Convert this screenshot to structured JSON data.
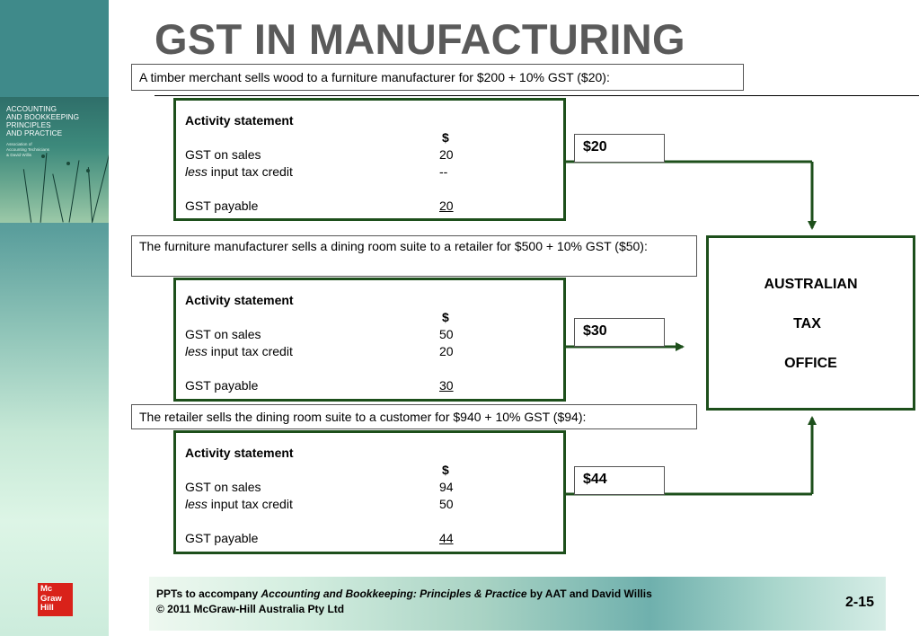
{
  "slide": {
    "title": "GST IN MANUFACTURING",
    "page_number": "2-15"
  },
  "sidebar": {
    "cover_title_lines": [
      "ACCOUNTING",
      "AND BOOKKEEPING",
      "PRINCIPLES",
      "AND PRACTICE"
    ],
    "cover_sub_lines": [
      "Association of",
      "Accounting Technicians",
      "& David Willis"
    ],
    "logo_lines": [
      "Mc",
      "Graw",
      "Hill"
    ]
  },
  "steps": [
    {
      "description": "A timber merchant sells wood to a furniture manufacturer for $200 + 10% GST ($20):",
      "statement": {
        "heading": "Activity statement",
        "currency": "$",
        "sales_label": "GST on sales",
        "sales_value": "20",
        "credit_label_em": "less",
        "credit_label_rest": " input tax credit",
        "credit_value": "--",
        "payable_label": "GST payable",
        "payable_value": "20"
      },
      "amount": "$20"
    },
    {
      "description": "The furniture manufacturer sells a dining room suite to a retailer for $500 + 10% GST ($50):",
      "statement": {
        "heading": "Activity statement",
        "currency": "$",
        "sales_label": "GST on sales",
        "sales_value": "50",
        "credit_label_em": "less",
        "credit_label_rest": " input tax credit",
        "credit_value": "20",
        "payable_label": "GST payable",
        "payable_value": "30"
      },
      "amount": "$30"
    },
    {
      "description": "The retailer sells the dining room suite to a customer for $940 + 10% GST ($94):",
      "statement": {
        "heading": "Activity statement",
        "currency": "$",
        "sales_label": "GST on sales",
        "sales_value": "94",
        "credit_label_em": "less",
        "credit_label_rest": " input tax credit",
        "credit_value": "50",
        "payable_label": "GST payable",
        "payable_value": "44"
      },
      "amount": "$44"
    }
  ],
  "ato": {
    "line1": "AUSTRALIAN",
    "line2": "TAX",
    "line3": "OFFICE"
  },
  "footer": {
    "prefix": "PPTs to accompany ",
    "book_title": "Accounting and Bookkeeping: Principles & Practice",
    "suffix": " by AAT and David Willis",
    "copyright": "© 2011 McGraw-Hill Australia Pty Ltd"
  },
  "colors": {
    "accent_green": "#1d4f1b",
    "title_gray": "#5a5a5a",
    "logo_red": "#d9221a"
  }
}
